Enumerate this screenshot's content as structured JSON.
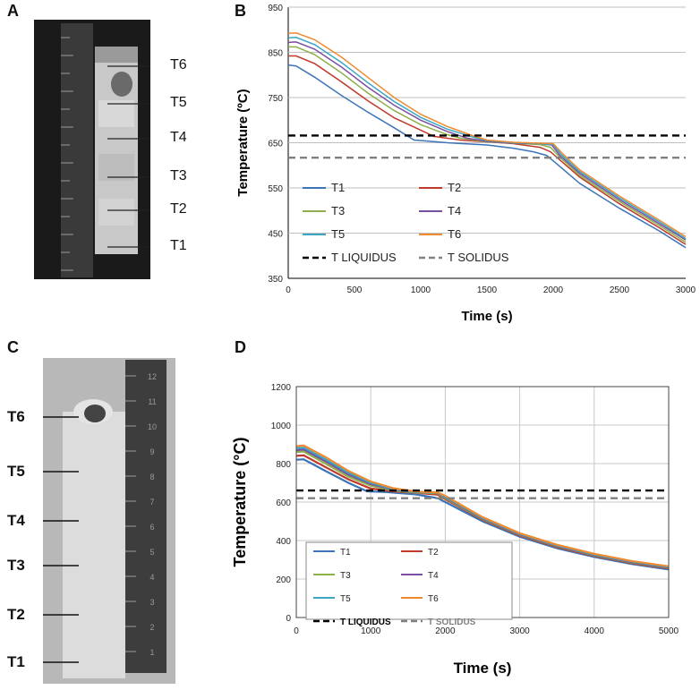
{
  "panel_letters": {
    "a": "A",
    "b": "B",
    "c": "C",
    "d": "D"
  },
  "photo_a": {
    "labels": [
      "T6",
      "T5",
      "T4",
      "T3",
      "T2",
      "T1"
    ]
  },
  "photo_c": {
    "labels": [
      "T6",
      "T5",
      "T4",
      "T3",
      "T2",
      "T1"
    ],
    "ruler_numbers": [
      "12",
      "11",
      "10",
      "9",
      "8",
      "7",
      "6",
      "5",
      "4",
      "3",
      "2",
      "1"
    ]
  },
  "colors": {
    "T1": "#3c74b8",
    "T2": "#c0392b",
    "T3": "#8db04a",
    "T4": "#7a4fa0",
    "T5": "#3aa6c4",
    "T6": "#ee8a30",
    "liquidus": "#000000",
    "solidus": "#808080"
  },
  "chart_data": [
    {
      "id": "B",
      "type": "line",
      "xlabel": "Time (s)",
      "ylabel": "Temperature (ºC)",
      "xlim": [
        0,
        3000
      ],
      "ylim": [
        350,
        950
      ],
      "xticks": [
        "0",
        "500",
        "1000",
        "1500",
        "2000",
        "2500",
        "3000"
      ],
      "yticks": [
        "350",
        "450",
        "550",
        "650",
        "750",
        "850",
        "950"
      ],
      "grid": "horizontal",
      "legend_position": "center-left",
      "series": [
        {
          "name": "T1",
          "points": [
            [
              0,
              822
            ],
            [
              60,
              820
            ],
            [
              200,
              795
            ],
            [
              400,
              755
            ],
            [
              600,
              718
            ],
            [
              800,
              683
            ],
            [
              950,
              656
            ],
            [
              1000,
              655
            ],
            [
              1200,
              650
            ],
            [
              1500,
              645
            ],
            [
              1700,
              638
            ],
            [
              1850,
              630
            ],
            [
              1950,
              622
            ],
            [
              2000,
              610
            ],
            [
              2200,
              560
            ],
            [
              2500,
              505
            ],
            [
              2800,
              455
            ],
            [
              3000,
              418
            ]
          ]
        },
        {
          "name": "T2",
          "points": [
            [
              0,
              842
            ],
            [
              60,
              842
            ],
            [
              200,
              825
            ],
            [
              400,
              785
            ],
            [
              600,
              743
            ],
            [
              800,
              705
            ],
            [
              1000,
              678
            ],
            [
              1100,
              664
            ],
            [
              1300,
              656
            ],
            [
              1500,
              652
            ],
            [
              1700,
              648
            ],
            [
              1900,
              640
            ],
            [
              1980,
              630
            ],
            [
              2050,
              612
            ],
            [
              2200,
              574
            ],
            [
              2500,
              515
            ],
            [
              2800,
              462
            ],
            [
              3000,
              425
            ]
          ]
        },
        {
          "name": "T3",
          "points": [
            [
              0,
              862
            ],
            [
              60,
              862
            ],
            [
              200,
              845
            ],
            [
              400,
              805
            ],
            [
              600,
              760
            ],
            [
              800,
              721
            ],
            [
              1000,
              690
            ],
            [
              1200,
              668
            ],
            [
              1300,
              660
            ],
            [
              1500,
              652
            ],
            [
              1700,
              649
            ],
            [
              1900,
              646
            ],
            [
              1980,
              640
            ],
            [
              2050,
              618
            ],
            [
              2200,
              578
            ],
            [
              2500,
              520
            ],
            [
              2800,
              467
            ],
            [
              3000,
              430
            ]
          ]
        },
        {
          "name": "T4",
          "points": [
            [
              0,
              872
            ],
            [
              60,
              873
            ],
            [
              200,
              857
            ],
            [
              400,
              818
            ],
            [
              600,
              773
            ],
            [
              800,
              733
            ],
            [
              1000,
              700
            ],
            [
              1200,
              675
            ],
            [
              1350,
              660
            ],
            [
              1500,
              653
            ],
            [
              1700,
              649
            ],
            [
              1900,
              648
            ],
            [
              1990,
              645
            ],
            [
              2050,
              622
            ],
            [
              2200,
              582
            ],
            [
              2500,
              524
            ],
            [
              2800,
              471
            ],
            [
              3000,
              435
            ]
          ]
        },
        {
          "name": "T5",
          "points": [
            [
              0,
              882
            ],
            [
              60,
              883
            ],
            [
              200,
              867
            ],
            [
              400,
              828
            ],
            [
              600,
              783
            ],
            [
              800,
              741
            ],
            [
              1000,
              706
            ],
            [
              1200,
              680
            ],
            [
              1400,
              662
            ],
            [
              1500,
              655
            ],
            [
              1700,
              650
            ],
            [
              1900,
              648
            ],
            [
              2000,
              646
            ],
            [
              2060,
              624
            ],
            [
              2200,
              586
            ],
            [
              2500,
              528
            ],
            [
              2800,
              475
            ],
            [
              3000,
              438
            ]
          ]
        },
        {
          "name": "T6",
          "points": [
            [
              0,
              892
            ],
            [
              60,
              893
            ],
            [
              200,
              878
            ],
            [
              400,
              840
            ],
            [
              600,
              795
            ],
            [
              800,
              750
            ],
            [
              1000,
              713
            ],
            [
              1200,
              686
            ],
            [
              1400,
              665
            ],
            [
              1500,
              656
            ],
            [
              1700,
              651
            ],
            [
              1900,
              649
            ],
            [
              2000,
              648
            ],
            [
              2070,
              626
            ],
            [
              2200,
              590
            ],
            [
              2500,
              532
            ],
            [
              2800,
              479
            ],
            [
              3000,
              442
            ]
          ]
        },
        {
          "name": "T LIQUIDUS",
          "dashed": true,
          "points": [
            [
              0,
              666
            ],
            [
              3000,
              666
            ]
          ]
        },
        {
          "name": "T SOLIDUS",
          "dashed": true,
          "points": [
            [
              0,
              617
            ],
            [
              3000,
              617
            ]
          ]
        }
      ]
    },
    {
      "id": "D",
      "type": "line",
      "xlabel": "Time (s)",
      "ylabel": "Temperature (°C)",
      "xlim": [
        0,
        5000
      ],
      "ylim": [
        0,
        1200
      ],
      "xticks": [
        "0",
        "1000",
        "2000",
        "3000",
        "4000",
        "5000"
      ],
      "yticks": [
        "0",
        "200",
        "400",
        "600",
        "800",
        "1000",
        "1200"
      ],
      "grid": "both",
      "legend_position": "bottom-left",
      "series": [
        {
          "name": "T1",
          "points": [
            [
              0,
              820
            ],
            [
              100,
              822
            ],
            [
              400,
              760
            ],
            [
              700,
              700
            ],
            [
              950,
              656
            ],
            [
              1200,
              652
            ],
            [
              1600,
              640
            ],
            [
              1900,
              620
            ],
            [
              2000,
              600
            ],
            [
              2500,
              500
            ],
            [
              3000,
              420
            ],
            [
              3500,
              360
            ],
            [
              4000,
              315
            ],
            [
              4500,
              278
            ],
            [
              5000,
              250
            ]
          ]
        },
        {
          "name": "T2",
          "points": [
            [
              0,
              840
            ],
            [
              100,
              843
            ],
            [
              400,
              780
            ],
            [
              700,
              718
            ],
            [
              1000,
              670
            ],
            [
              1300,
              656
            ],
            [
              1600,
              649
            ],
            [
              1900,
              638
            ],
            [
              2000,
              615
            ],
            [
              2500,
              508
            ],
            [
              3000,
              426
            ],
            [
              3500,
              366
            ],
            [
              4000,
              320
            ],
            [
              4500,
              283
            ],
            [
              5000,
              255
            ]
          ]
        },
        {
          "name": "T3",
          "points": [
            [
              0,
              860
            ],
            [
              100,
              863
            ],
            [
              400,
              798
            ],
            [
              700,
              732
            ],
            [
              1000,
              685
            ],
            [
              1300,
              660
            ],
            [
              1600,
              650
            ],
            [
              1900,
              645
            ],
            [
              2000,
              620
            ],
            [
              2500,
              512
            ],
            [
              3000,
              430
            ],
            [
              3500,
              370
            ],
            [
              4000,
              323
            ],
            [
              4500,
              286
            ],
            [
              5000,
              258
            ]
          ]
        },
        {
          "name": "T4",
          "points": [
            [
              0,
              870
            ],
            [
              100,
              873
            ],
            [
              400,
              810
            ],
            [
              700,
              743
            ],
            [
              1000,
              694
            ],
            [
              1300,
              664
            ],
            [
              1600,
              652
            ],
            [
              1900,
              648
            ],
            [
              2000,
              625
            ],
            [
              2500,
              515
            ],
            [
              3000,
              432
            ],
            [
              3500,
              372
            ],
            [
              4000,
              325
            ],
            [
              4500,
              288
            ],
            [
              5000,
              260
            ]
          ]
        },
        {
          "name": "T5",
          "points": [
            [
              0,
              880
            ],
            [
              100,
              883
            ],
            [
              400,
              820
            ],
            [
              700,
              752
            ],
            [
              1000,
              700
            ],
            [
              1300,
              668
            ],
            [
              1600,
              653
            ],
            [
              1900,
              649
            ],
            [
              2000,
              628
            ],
            [
              2500,
              518
            ],
            [
              3000,
              435
            ],
            [
              3500,
              375
            ],
            [
              4000,
              328
            ],
            [
              4500,
              291
            ],
            [
              5000,
              263
            ]
          ]
        },
        {
          "name": "T6",
          "points": [
            [
              0,
              890
            ],
            [
              100,
              894
            ],
            [
              400,
              832
            ],
            [
              700,
              762
            ],
            [
              1000,
              707
            ],
            [
              1300,
              672
            ],
            [
              1600,
              655
            ],
            [
              1900,
              650
            ],
            [
              2000,
              632
            ],
            [
              2500,
              522
            ],
            [
              3000,
              438
            ],
            [
              3500,
              378
            ],
            [
              4000,
              331
            ],
            [
              4500,
              294
            ],
            [
              5000,
              266
            ]
          ]
        },
        {
          "name": "T LIQUIDUS",
          "dashed": true,
          "points": [
            [
              0,
              660
            ],
            [
              5000,
              660
            ]
          ]
        },
        {
          "name": "T SOLIDUS",
          "dashed": true,
          "points": [
            [
              0,
              620
            ],
            [
              5000,
              620
            ]
          ]
        }
      ]
    }
  ]
}
